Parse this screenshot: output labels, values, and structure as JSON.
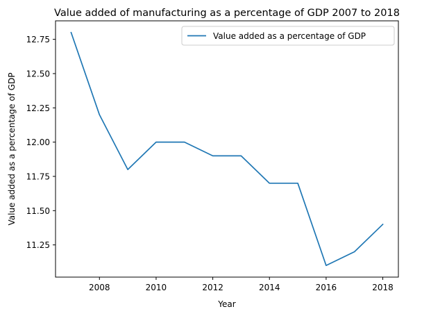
{
  "chart_data": {
    "type": "line",
    "title": "Value added of manufacturing as a percentage of GDP 2007 to 2018",
    "xlabel": "Year",
    "ylabel": "Value added as a percentage of GDP",
    "x": [
      2007,
      2008,
      2009,
      2010,
      2011,
      2012,
      2013,
      2014,
      2015,
      2016,
      2017,
      2018
    ],
    "series": [
      {
        "name": "Value added as a percentage of GDP",
        "color": "#1f77b4",
        "values": [
          12.8,
          12.2,
          11.8,
          12.0,
          12.0,
          11.9,
          11.9,
          11.7,
          11.7,
          11.1,
          11.2,
          11.4
        ]
      }
    ],
    "xlim": [
      2006.45,
      2018.55
    ],
    "ylim": [
      11.015,
      12.885
    ],
    "xticks": [
      2008,
      2010,
      2012,
      2014,
      2016,
      2018
    ],
    "yticks": [
      11.25,
      11.5,
      11.75,
      12.0,
      12.25,
      12.5,
      12.75
    ],
    "ytick_labels": [
      "11.25",
      "11.50",
      "11.75",
      "12.00",
      "12.25",
      "12.50",
      "12.75"
    ],
    "grid": false,
    "legend_position": "top-right"
  }
}
